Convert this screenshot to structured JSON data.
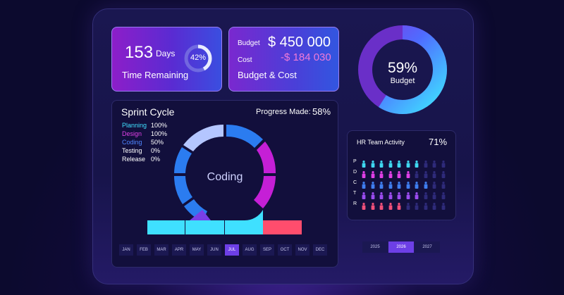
{
  "kpi_time": {
    "value": "153",
    "unit": "Days",
    "title": "Time Remaining",
    "percent_label": "42%",
    "percent": 0.42
  },
  "kpi_budget": {
    "budget_label": "Budget",
    "budget_value": "$ 450 000",
    "cost_label": "Cost",
    "cost_value": "-$ 184 030",
    "title": "Budget & Cost"
  },
  "budget_donut": {
    "percent_label": "59%",
    "label": "Budget",
    "percent": 0.59
  },
  "sprint": {
    "title": "Sprint Cycle",
    "progress_label": "Progress Made:",
    "progress_value": "58%",
    "center_label": "Coding",
    "stages": [
      {
        "name": "Planning",
        "pct": "100%",
        "color": "#3fe0ff"
      },
      {
        "name": "Design",
        "pct": "100%",
        "color": "#e040e6"
      },
      {
        "name": "Coding",
        "pct": "50%",
        "color": "#4f86ff"
      },
      {
        "name": "Testing",
        "pct": "0%",
        "color": "#ffffff"
      },
      {
        "name": "Release",
        "pct": "0%",
        "color": "#ffffff"
      }
    ],
    "months": [
      "JAN",
      "FEB",
      "MAR",
      "APR",
      "MAY",
      "JUN",
      "JUL",
      "AUG",
      "SEP",
      "OCT",
      "NOV",
      "DEC"
    ],
    "active_month": "JUL"
  },
  "hr": {
    "title": "HR Team Activity",
    "percent": "71%",
    "rows": [
      {
        "label": "P",
        "color": "#3fd8f0",
        "filled": 7
      },
      {
        "label": "D",
        "color": "#e040e6",
        "filled": 6
      },
      {
        "label": "C",
        "color": "#3f7ef0",
        "filled": 8
      },
      {
        "label": "T",
        "color": "#9b4cf0",
        "filled": 7
      },
      {
        "label": "R",
        "color": "#f0507a",
        "filled": 5
      }
    ],
    "icons_per_row": 10,
    "icon_name": "person-icon"
  },
  "years": {
    "items": [
      "2025",
      "2026",
      "2027"
    ],
    "active": "2026"
  },
  "colors": {
    "accent": "#6d3fe6",
    "cyan": "#3fe0ff",
    "magenta": "#e040e6",
    "blue": "#4f86ff",
    "red": "#ff4d6d"
  }
}
